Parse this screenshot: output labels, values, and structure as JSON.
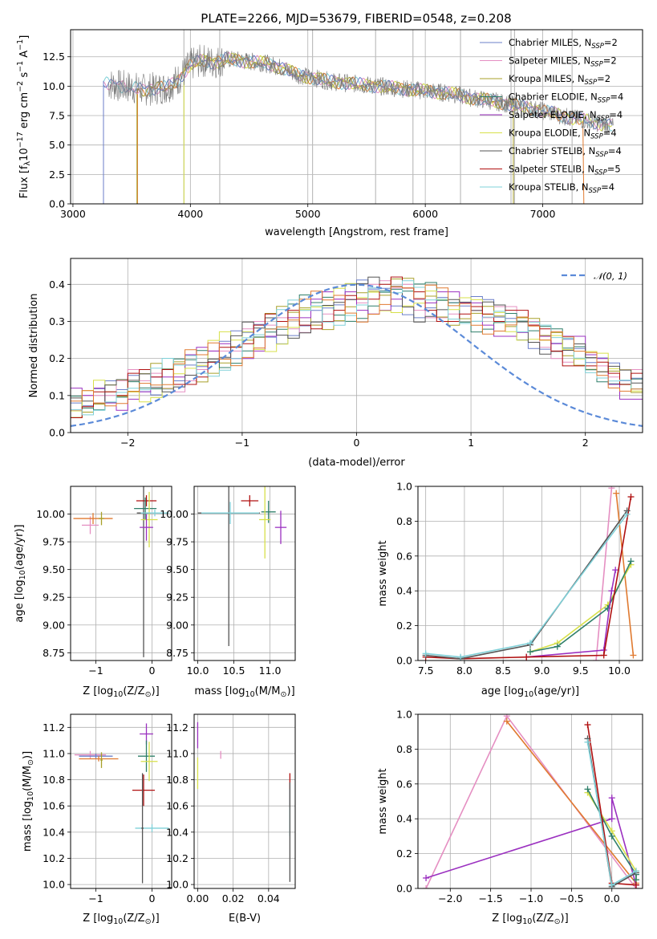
{
  "figure": {
    "title": "PLATE=2266, MJD=53679, FIBERID=0548, z=0.208"
  },
  "colors": {
    "Chabrier MILES": "#6b7fc9",
    "Salpeter MILES": "#e58fc2",
    "Kroupa MILES": "#a8a02a",
    "Chabrier ELODIE": "#2f7f6a",
    "Salpeter ELODIE": "#9b30c0",
    "Kroupa ELODIE": "#d7e04a",
    "Chabrier STELIB": "#555555",
    "Salpeter STELIB": "#b01010",
    "Kroupa STELIB": "#7fd0d8",
    "orange_model": "#e07a30",
    "normal_curve": "#5b8ad8"
  },
  "chart_data": [
    {
      "id": "spectrum",
      "type": "line",
      "xlabel": "wavelength [Angstrom, rest frame]",
      "ylabel_parts": [
        "Flux [f",
        "λ",
        "10",
        "−17",
        " erg cm",
        "−2",
        " s",
        "−1",
        " A",
        "−1",
        "]"
      ],
      "xlim": [
        2980,
        7850
      ],
      "ylim": [
        0,
        14.8
      ],
      "xticks": [
        3000,
        4000,
        5000,
        6000,
        7000
      ],
      "yticks": [
        0.0,
        2.5,
        5.0,
        7.5,
        10.0,
        12.5
      ],
      "ytick_labels": [
        "0.0",
        "2.5",
        "5.0",
        "7.5",
        "10.0",
        "12.5"
      ],
      "legend": [
        {
          "prefix": "Chabrier MILES, N",
          "sub": "SSP",
          "suffix": "=2"
        },
        {
          "prefix": "Salpeter MILES, N",
          "sub": "SSP",
          "suffix": "=2"
        },
        {
          "prefix": "Kroupa MILES, N",
          "sub": "SSP",
          "suffix": "=2"
        },
        {
          "prefix": "Chabrier ELODIE, N",
          "sub": "SSP",
          "suffix": "=4"
        },
        {
          "prefix": "Salpeter ELODIE, N",
          "sub": "SSP",
          "suffix": "=4"
        },
        {
          "prefix": "Kroupa ELODIE, N",
          "sub": "SSP",
          "suffix": "=4"
        },
        {
          "prefix": "Chabrier STELIB, N",
          "sub": "SSP",
          "suffix": "=4"
        },
        {
          "prefix": "Salpeter STELIB, N",
          "sub": "SSP",
          "suffix": "=5"
        },
        {
          "prefix": "Kroupa STELIB, N",
          "sub": "SSP",
          "suffix": "=4"
        }
      ],
      "legend_placement": "top-right",
      "continuum": {
        "x": [
          3250,
          3300,
          3400,
          3500,
          3600,
          3700,
          3800,
          3900,
          4000,
          4100,
          4200,
          4300,
          4400,
          4500,
          4600,
          4700,
          4800,
          4900,
          5000,
          5200,
          5400,
          5600,
          5800,
          6000,
          6200,
          6400,
          6600,
          6800,
          7000,
          7200,
          7400,
          7600
        ],
        "y": [
          10.5,
          10.2,
          10.0,
          9.9,
          9.7,
          9.8,
          9.9,
          10.6,
          11.8,
          12.2,
          12.0,
          12.3,
          12.2,
          12.1,
          12.0,
          11.8,
          11.5,
          11.0,
          10.8,
          10.4,
          10.2,
          10.0,
          9.8,
          9.6,
          9.4,
          9.0,
          8.7,
          8.3,
          7.9,
          7.4,
          7.0,
          6.6
        ]
      },
      "model_starts": [
        {
          "model": "Kroupa STELIB",
          "x": 3260
        },
        {
          "model": "Kroupa MILES",
          "x": 3545
        },
        {
          "model": "orange_model",
          "x": 3550
        },
        {
          "model": "Kroupa ELODIE",
          "x": 3945
        }
      ],
      "model_ends": [
        {
          "model": "Kroupa MILES",
          "x": 6750
        },
        {
          "model": "orange_model",
          "x": 7350
        }
      ],
      "sky_lines": [
        3945,
        4250,
        5040,
        5577,
        5895,
        6300,
        6730,
        6760,
        7250
      ]
    },
    {
      "id": "residuals",
      "type": "step",
      "xlabel": "(data-model)/error",
      "ylabel": "Normed distribution",
      "xlim": [
        -2.5,
        2.5
      ],
      "ylim": [
        0,
        0.47
      ],
      "xticks": [
        -2,
        -1,
        0,
        1,
        2
      ],
      "xtick_labels": [
        "−2",
        "−1",
        "0",
        "1",
        "2"
      ],
      "yticks": [
        0.0,
        0.1,
        0.2,
        0.3,
        0.4
      ],
      "ytick_labels": [
        "0.0",
        "0.1",
        "0.2",
        "0.3",
        "0.4"
      ],
      "legend": "𝒩(0, 1)",
      "legend_placement": "top-right",
      "bin_width": 0.1,
      "bin_start": -2.5,
      "envelope": [
        0.07,
        0.08,
        0.09,
        0.1,
        0.1,
        0.12,
        0.12,
        0.13,
        0.14,
        0.15,
        0.17,
        0.18,
        0.2,
        0.21,
        0.22,
        0.24,
        0.25,
        0.27,
        0.28,
        0.3,
        0.31,
        0.32,
        0.33,
        0.34,
        0.35,
        0.35,
        0.36,
        0.36,
        0.37,
        0.37,
        0.35,
        0.35,
        0.34,
        0.33,
        0.33,
        0.32,
        0.31,
        0.3,
        0.29,
        0.28,
        0.27,
        0.25,
        0.24,
        0.22,
        0.21,
        0.19,
        0.17,
        0.15,
        0.13,
        0.12
      ],
      "offsets": [
        0.01,
        0.02,
        -0.03,
        0.0,
        0.03,
        -0.01,
        0.04,
        -0.02,
        0.02,
        0.05,
        -0.04
      ],
      "normal": {
        "mu": 0,
        "sigma": 1
      }
    },
    {
      "id": "age_vs_Z",
      "type": "errorbar",
      "xlabel_parts": [
        "Z [log",
        "10",
        "(Z/Z",
        "⊙",
        ")]"
      ],
      "ylabel_parts": [
        "age  [log",
        "10",
        "(age/yr)]"
      ],
      "xlim": [
        -1.45,
        0.35
      ],
      "ylim": [
        8.68,
        10.25
      ],
      "xticks": [
        -1,
        0
      ],
      "xtick_labels": [
        "−1",
        "0"
      ],
      "yticks": [
        8.75,
        9.0,
        9.25,
        9.5,
        9.75,
        10.0
      ],
      "ytick_labels": [
        "8.75",
        "9.00",
        "9.25",
        "9.50",
        "9.75",
        "10.00"
      ],
      "points": [
        {
          "model": "Salpeter MILES",
          "x": -1.1,
          "y": 9.9,
          "xerr": 0.15,
          "yerr": 0.08
        },
        {
          "model": "orange_model",
          "x": -1.05,
          "y": 9.96,
          "xerr": 0.35,
          "yerr": 0.05
        },
        {
          "model": "Kroupa MILES",
          "x": -0.9,
          "y": 9.96,
          "xerr": 0.05,
          "yerr": 0.06
        },
        {
          "model": "Chabrier STELIB",
          "x": -0.15,
          "y": 10.01,
          "xerr": 0.12,
          "yerr": 1.3
        },
        {
          "model": "Salpeter STELIB",
          "x": -0.1,
          "y": 10.12,
          "xerr": 0.18,
          "yerr": 0.05
        },
        {
          "model": "Chabrier ELODIE",
          "x": -0.12,
          "y": 10.05,
          "xerr": 0.2,
          "yerr": 0.1
        },
        {
          "model": "Kroupa ELODIE",
          "x": -0.05,
          "y": 9.95,
          "xerr": 0.15,
          "yerr": 0.25
        },
        {
          "model": "Salpeter ELODIE",
          "x": -0.1,
          "y": 9.88,
          "xerr": 0.12,
          "yerr": 0.12
        },
        {
          "model": "Kroupa STELIB",
          "x": 0.05,
          "y": 10.01,
          "xerr": 0.25,
          "yerr": 0.03
        }
      ]
    },
    {
      "id": "age_vs_mass",
      "type": "errorbar",
      "xlabel_parts": [
        "mass [log",
        "10",
        "(M/M",
        "⊙",
        ")]"
      ],
      "xlim": [
        9.95,
        11.35
      ],
      "ylim": [
        8.68,
        10.25
      ],
      "xticks": [
        10.0,
        10.5,
        11.0
      ],
      "xtick_labels": [
        "10.0",
        "10.5",
        "11.0"
      ],
      "yticks": [
        8.75,
        9.0,
        9.25,
        9.5,
        9.75,
        10.0
      ],
      "ytick_labels": [
        "8.75",
        "9.00",
        "9.25",
        "9.50",
        "9.75",
        "10.00"
      ],
      "points": [
        {
          "model": "Chabrier STELIB",
          "x": 10.43,
          "y": 10.01,
          "xerr": 0.43,
          "yerr": 1.2
        },
        {
          "model": "Kroupa STELIB",
          "x": 10.45,
          "y": 10.01,
          "xerr": 0.4,
          "yerr": 0.1
        },
        {
          "model": "Salpeter STELIB",
          "x": 10.72,
          "y": 10.12,
          "xerr": 0.12,
          "yerr": 0.05
        },
        {
          "model": "Chabrier ELODIE",
          "x": 10.98,
          "y": 10.02,
          "xerr": 0.1,
          "yerr": 0.1
        },
        {
          "model": "Kroupa ELODIE",
          "x": 10.93,
          "y": 9.95,
          "xerr": 0.08,
          "yerr": 0.35
        },
        {
          "model": "Salpeter ELODIE",
          "x": 11.15,
          "y": 9.88,
          "xerr": 0.08,
          "yerr": 0.15
        }
      ]
    },
    {
      "id": "weight_vs_age",
      "type": "line",
      "xlabel_parts": [
        "age  [log",
        "10",
        "(age/yr)]"
      ],
      "ylabel": "mass weight",
      "xlim": [
        7.4,
        10.3
      ],
      "ylim": [
        0,
        1.0
      ],
      "xticks": [
        7.5,
        8.0,
        8.5,
        9.0,
        9.5,
        10.0
      ],
      "xtick_labels": [
        "7.5",
        "8.0",
        "8.5",
        "9.0",
        "9.5",
        "10.0"
      ],
      "yticks": [
        0.0,
        0.2,
        0.4,
        0.6,
        0.8,
        1.0
      ],
      "ytick_labels": [
        "0.0",
        "0.2",
        "0.4",
        "0.6",
        "0.8",
        "1.0"
      ],
      "series": [
        {
          "model": "Salpeter MILES",
          "x": [
            9.7,
            9.9
          ],
          "y": [
            0.0,
            0.99
          ]
        },
        {
          "model": "orange_model",
          "x": [
            9.96,
            10.18
          ],
          "y": [
            0.96,
            0.03
          ]
        },
        {
          "model": "Kroupa ELODIE",
          "x": [
            8.85,
            9.2,
            9.85,
            10.15
          ],
          "y": [
            0.05,
            0.1,
            0.32,
            0.55
          ]
        },
        {
          "model": "Chabrier ELODIE",
          "x": [
            8.85,
            9.2,
            9.85,
            10.15
          ],
          "y": [
            0.05,
            0.08,
            0.3,
            0.57
          ]
        },
        {
          "model": "Salpeter ELODIE",
          "x": [
            8.8,
            9.8,
            9.9,
            9.95
          ],
          "y": [
            0.02,
            0.06,
            0.4,
            0.52
          ]
        },
        {
          "model": "Salpeter STELIB",
          "x": [
            7.5,
            7.95,
            8.8,
            9.8,
            10.15
          ],
          "y": [
            0.02,
            0.01,
            0.02,
            0.03,
            0.94
          ]
        },
        {
          "model": "Chabrier STELIB",
          "x": [
            7.5,
            7.95,
            8.85,
            10.1
          ],
          "y": [
            0.03,
            0.01,
            0.09,
            0.86
          ]
        },
        {
          "model": "Kroupa STELIB",
          "x": [
            7.5,
            7.95,
            8.85,
            10.1
          ],
          "y": [
            0.04,
            0.02,
            0.1,
            0.84
          ]
        }
      ]
    },
    {
      "id": "mass_vs_Z",
      "type": "errorbar",
      "xlabel_parts": [
        "Z [log",
        "10",
        "(Z/Z",
        "⊙",
        ")]"
      ],
      "ylabel_parts": [
        "mass [log",
        "10",
        "(M/M",
        "⊙",
        ")]"
      ],
      "xlim": [
        -1.45,
        0.35
      ],
      "ylim": [
        9.97,
        11.3
      ],
      "xticks": [
        -1,
        0
      ],
      "xtick_labels": [
        "−1",
        "0"
      ],
      "yticks": [
        10.0,
        10.2,
        10.4,
        10.6,
        10.8,
        11.0,
        11.2
      ],
      "ytick_labels": [
        "10.0",
        "10.2",
        "10.4",
        "10.6",
        "10.8",
        "11.0",
        "11.2"
      ],
      "points": [
        {
          "model": "Salpeter MILES",
          "x": -1.1,
          "y": 10.99,
          "xerr": 0.28,
          "yerr": 0.03
        },
        {
          "model": "Chabrier MILES",
          "x": -1.0,
          "y": 10.98,
          "xerr": 0.3,
          "yerr": 0.02
        },
        {
          "model": "orange_model",
          "x": -0.95,
          "y": 10.96,
          "xerr": 0.35,
          "yerr": 0.02
        },
        {
          "model": "Kroupa MILES",
          "x": -0.9,
          "y": 10.95,
          "xerr": 0.02,
          "yerr": 0.06
        },
        {
          "model": "Salpeter ELODIE",
          "x": -0.1,
          "y": 11.15,
          "xerr": 0.12,
          "yerr": 0.08
        },
        {
          "model": "Chabrier ELODIE",
          "x": -0.1,
          "y": 10.98,
          "xerr": 0.15,
          "yerr": 0.12
        },
        {
          "model": "Kroupa ELODIE",
          "x": -0.05,
          "y": 10.94,
          "xerr": 0.15,
          "yerr": 0.15
        },
        {
          "model": "Salpeter STELIB",
          "x": -0.15,
          "y": 10.72,
          "xerr": 0.2,
          "yerr": 0.12
        },
        {
          "model": "Kroupa STELIB",
          "x": 0.0,
          "y": 10.43,
          "xerr": 0.3,
          "yerr": 0.03
        },
        {
          "model": "Chabrier STELIB",
          "x": -0.17,
          "y": 10.43,
          "xerr": 0.02,
          "yerr": 0.42
        }
      ]
    },
    {
      "id": "mass_vs_EBV",
      "type": "errorbar",
      "xlabel": "E(B-V)",
      "xlim": [
        -0.002,
        0.055
      ],
      "ylim": [
        9.97,
        11.3
      ],
      "xticks": [
        0.0,
        0.02,
        0.04
      ],
      "xtick_labels": [
        "0.00",
        "0.02",
        "0.04"
      ],
      "yticks": [
        10.0,
        10.2,
        10.4,
        10.6,
        10.8,
        11.0,
        11.2
      ],
      "ytick_labels": [
        "10.0",
        "10.2",
        "10.4",
        "10.6",
        "10.8",
        "11.0",
        "11.2"
      ],
      "points": [
        {
          "model": "Salpeter ELODIE",
          "x": 0.0,
          "y": 11.14,
          "xerr": 0.0,
          "yerr": 0.1
        },
        {
          "model": "Kroupa ELODIE",
          "x": 0.0,
          "y": 10.85,
          "xerr": 0.0,
          "yerr": 0.12
        },
        {
          "model": "Salpeter MILES",
          "x": 0.013,
          "y": 10.99,
          "xerr": 0.0,
          "yerr": 0.03
        },
        {
          "model": "Salpeter STELIB",
          "x": 0.052,
          "y": 10.72,
          "xerr": 0.0,
          "yerr": 0.13
        },
        {
          "model": "Kroupa STELIB",
          "x": 0.052,
          "y": 10.55,
          "xerr": 0.0,
          "yerr": 0.18
        },
        {
          "model": "Chabrier STELIB",
          "x": 0.052,
          "y": 10.4,
          "xerr": 0.0,
          "yerr": 0.38
        }
      ]
    },
    {
      "id": "weight_vs_Z",
      "type": "line",
      "xlabel_parts": [
        "Z [log",
        "10",
        "(Z/Z",
        "⊙",
        ")]"
      ],
      "ylabel": "mass weight",
      "xlim": [
        -2.4,
        0.38
      ],
      "ylim": [
        0,
        1.0
      ],
      "xticks": [
        -2.0,
        -1.5,
        -1.0,
        -0.5,
        0.0
      ],
      "xtick_labels": [
        "−2.0",
        "−1.5",
        "−1.0",
        "−0.5",
        "0.0"
      ],
      "yticks": [
        0.0,
        0.2,
        0.4,
        0.6,
        0.8,
        1.0
      ],
      "ytick_labels": [
        "0.0",
        "0.2",
        "0.4",
        "0.6",
        "0.8",
        "1.0"
      ],
      "series": [
        {
          "model": "Salpeter MILES",
          "x": [
            -2.3,
            -1.3,
            0.3
          ],
          "y": [
            0.0,
            0.99,
            0.0
          ]
        },
        {
          "model": "orange_model",
          "x": [
            -1.3,
            0.3
          ],
          "y": [
            0.96,
            0.03
          ]
        },
        {
          "model": "Salpeter ELODIE",
          "x": [
            -2.3,
            0.0,
            0.0,
            0.3
          ],
          "y": [
            0.06,
            0.4,
            0.52,
            0.02
          ]
        },
        {
          "model": "Kroupa ELODIE",
          "x": [
            -0.3,
            0.0,
            0.3,
            0.3
          ],
          "y": [
            0.55,
            0.33,
            0.1,
            0.05
          ]
        },
        {
          "model": "Chabrier ELODIE",
          "x": [
            -0.3,
            0.0,
            0.3,
            0.3
          ],
          "y": [
            0.57,
            0.3,
            0.08,
            0.05
          ]
        },
        {
          "model": "Salpeter STELIB",
          "x": [
            -0.3,
            0.0,
            0.3
          ],
          "y": [
            0.94,
            0.03,
            0.02
          ]
        },
        {
          "model": "Chabrier STELIB",
          "x": [
            -0.3,
            0.0,
            0.3
          ],
          "y": [
            0.86,
            0.01,
            0.09
          ]
        },
        {
          "model": "Kroupa STELIB",
          "x": [
            -0.3,
            0.0,
            0.3
          ],
          "y": [
            0.84,
            0.02,
            0.1
          ]
        }
      ]
    }
  ]
}
